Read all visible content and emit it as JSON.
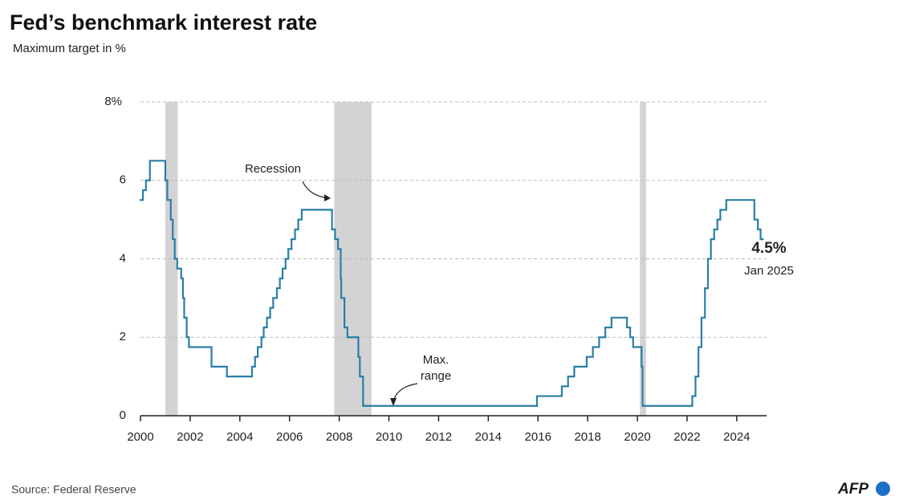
{
  "chart_data": {
    "type": "step-line",
    "title": "Fed’s benchmark interest rate",
    "subtitle": "Maximum target in %",
    "source": "Source: Federal Reserve",
    "logo": "AFP",
    "xlim": [
      2000,
      2025.2
    ],
    "ylim": [
      0,
      8
    ],
    "xticks": [
      2000,
      2002,
      2004,
      2006,
      2008,
      2010,
      2012,
      2014,
      2016,
      2018,
      2020,
      2022,
      2024
    ],
    "yticks": [
      0,
      2,
      4,
      6,
      {
        "value": 8,
        "label": "8%"
      }
    ],
    "grid": true,
    "recessions": [
      [
        2001.0,
        2001.5
      ],
      [
        2007.8,
        2009.3
      ],
      [
        2020.1,
        2020.35
      ]
    ],
    "recession_color": "#d3d3d3",
    "annotations": {
      "recession": "Recession",
      "max_range": [
        "Max.",
        "range"
      ],
      "last_value": "4.5%",
      "last_date": "Jan 2025"
    },
    "series": [
      {
        "name": "Maximum target",
        "color": "#2b7ea6",
        "x": [
          2000.0,
          2000.1,
          2000.22,
          2000.38,
          2001.0,
          2001.08,
          2001.22,
          2001.3,
          2001.38,
          2001.48,
          2001.64,
          2001.71,
          2001.76,
          2001.86,
          2001.95,
          2002.86,
          2003.48,
          2004.49,
          2004.61,
          2004.72,
          2004.87,
          2004.96,
          2005.09,
          2005.22,
          2005.34,
          2005.49,
          2005.61,
          2005.72,
          2005.84,
          2005.95,
          2006.08,
          2006.22,
          2006.35,
          2006.49,
          2007.71,
          2007.83,
          2007.95,
          2008.06,
          2008.08,
          2008.21,
          2008.33,
          2008.77,
          2008.83,
          2008.96,
          2015.96,
          2016.96,
          2017.21,
          2017.46,
          2017.96,
          2018.21,
          2018.46,
          2018.71,
          2018.96,
          2019.58,
          2019.71,
          2019.83,
          2020.17,
          2020.21,
          2022.21,
          2022.34,
          2022.46,
          2022.58,
          2022.72,
          2022.84,
          2022.96,
          2023.09,
          2023.22,
          2023.34,
          2023.58,
          2024.71,
          2024.85,
          2024.96,
          2025.05
        ],
        "values": [
          5.5,
          5.75,
          6.0,
          6.5,
          6.0,
          5.5,
          5.0,
          4.5,
          4.0,
          3.75,
          3.5,
          3.0,
          2.5,
          2.0,
          1.75,
          1.25,
          1.0,
          1.25,
          1.5,
          1.75,
          2.0,
          2.25,
          2.5,
          2.75,
          3.0,
          3.25,
          3.5,
          3.75,
          4.0,
          4.25,
          4.5,
          4.75,
          5.0,
          5.25,
          4.75,
          4.5,
          4.25,
          3.5,
          3.0,
          2.25,
          2.0,
          1.5,
          1.0,
          0.25,
          0.5,
          0.75,
          1.0,
          1.25,
          1.5,
          1.75,
          2.0,
          2.25,
          2.5,
          2.25,
          2.0,
          1.75,
          1.25,
          0.25,
          0.5,
          1.0,
          1.75,
          2.5,
          3.25,
          4.0,
          4.5,
          4.75,
          5.0,
          5.25,
          5.5,
          5.0,
          4.75,
          4.5,
          4.5
        ]
      }
    ]
  }
}
